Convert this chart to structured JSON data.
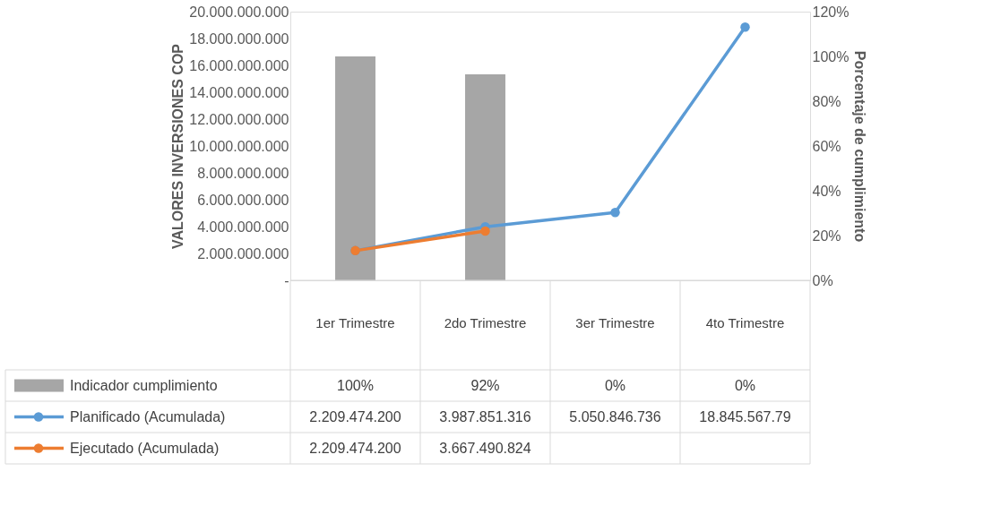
{
  "chart_data": {
    "type": "line",
    "ylabel": "VALORES INVERSIONES COP",
    "y2label": "Porcentaje de cumplimiento",
    "categories": [
      "1er Trimestre",
      "2do Trimestre",
      "3er Trimestre",
      "4to Trimestre"
    ],
    "series": [
      {
        "name": "Indicador cumplimiento",
        "type": "bar",
        "axis": "y2",
        "color": "#a6a6a6",
        "values": [
          100,
          92,
          0,
          0
        ],
        "value_labels": [
          "100%",
          "92%",
          "0%",
          "0%"
        ]
      },
      {
        "name": "Planificado (Acumulada)",
        "color": "#5b9bd5",
        "values": [
          2209474200,
          3987851316,
          5050846736,
          18845567790
        ],
        "value_labels": [
          "2.209.474.200",
          "3.987.851.316",
          "5.050.846.736",
          "18.845.567.79"
        ]
      },
      {
        "name": "Ejecutado (Acumulada)",
        "color": "#ed7d31",
        "values": [
          2209474200,
          3667490824,
          null,
          null
        ],
        "value_labels": [
          "2.209.474.200",
          "3.667.490.824",
          null,
          null
        ]
      }
    ],
    "ylim": [
      0,
      20000000000
    ],
    "yticks": [
      {
        "value": 0,
        "label": "-"
      },
      {
        "value": 2000000000,
        "label": "2.000.000.000"
      },
      {
        "value": 4000000000,
        "label": "4.000.000.000"
      },
      {
        "value": 6000000000,
        "label": "6.000.000.000"
      },
      {
        "value": 8000000000,
        "label": "8.000.000.000"
      },
      {
        "value": 10000000000,
        "label": "10.000.000.000"
      },
      {
        "value": 12000000000,
        "label": "12.000.000.000"
      },
      {
        "value": 14000000000,
        "label": "14.000.000.000"
      },
      {
        "value": 16000000000,
        "label": "16.000.000.000"
      },
      {
        "value": 18000000000,
        "label": "18.000.000.000"
      },
      {
        "value": 20000000000,
        "label": "20.000.000.000"
      }
    ],
    "y2lim": [
      0,
      120
    ],
    "y2ticks": [
      {
        "value": 0,
        "label": "0%"
      },
      {
        "value": 20,
        "label": "20%"
      },
      {
        "value": 40,
        "label": "40%"
      },
      {
        "value": 60,
        "label": "60%"
      },
      {
        "value": 80,
        "label": "80%"
      },
      {
        "value": 100,
        "label": "100%"
      },
      {
        "value": 120,
        "label": "120%"
      }
    ],
    "grid": false,
    "legend": "bottom",
    "marker": "circle",
    "line_style": "solid"
  }
}
